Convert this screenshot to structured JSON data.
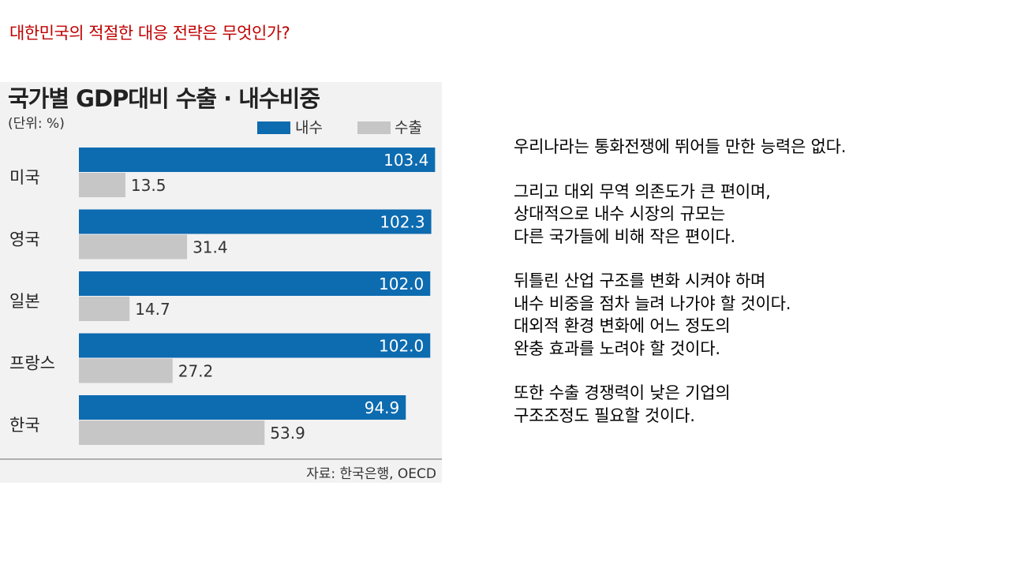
{
  "slide_title": "대한민국의 적절한 대응 전략은 무엇인가?",
  "colors": {
    "title": "#c00000",
    "domestic": "#0d6bb0",
    "export": "#c6c6c6",
    "panel_bg": "#f2f2f2"
  },
  "chart_data": {
    "type": "bar",
    "orientation": "horizontal",
    "title": "국가별 GDP대비 수출 · 내수비중",
    "unit_label": "(단위: %)",
    "source": "자료: 한국은행, OECD",
    "categories": [
      "미국",
      "영국",
      "일본",
      "프랑스",
      "한국"
    ],
    "series": [
      {
        "name": "내수",
        "color": "#0d6bb0",
        "values": [
          103.4,
          102.3,
          102.0,
          102.0,
          94.9
        ],
        "labels": [
          "103.4",
          "102.3",
          "102.0",
          "102.0",
          "94.9"
        ]
      },
      {
        "name": "수출",
        "color": "#c6c6c6",
        "values": [
          13.5,
          31.4,
          14.7,
          27.2,
          53.9
        ],
        "labels": [
          "13.5",
          "31.4",
          "14.7",
          "27.2",
          "53.9"
        ]
      }
    ],
    "xlim": [
      0,
      104
    ],
    "legend": "top-right",
    "grid": false
  },
  "body": {
    "paragraphs": [
      [
        "우리나라는 통화전쟁에 뛰어들 만한 능력은 없다."
      ],
      [
        "그리고 대외 무역 의존도가 큰 편이며,",
        "상대적으로 내수 시장의 규모는",
        "다른 국가들에 비해 작은 편이다."
      ],
      [
        "뒤틀린 산업 구조를 변화 시켜야 하며",
        "내수 비중을 점차 늘려 나가야 할 것이다.",
        "대외적 환경 변화에 어느 정도의",
        "완충 효과를 노려야 할 것이다."
      ],
      [
        "또한 수출 경쟁력이 낮은 기업의",
        "구조조정도 필요할 것이다."
      ]
    ]
  }
}
